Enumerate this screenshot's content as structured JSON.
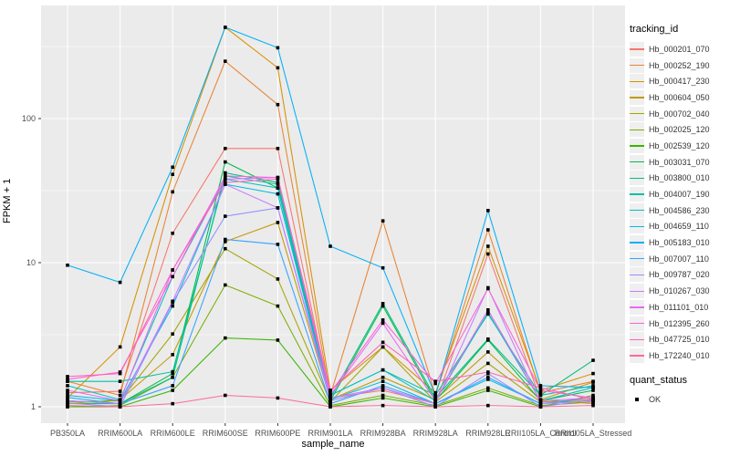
{
  "chart_data": {
    "type": "line",
    "title": "",
    "xlabel": "sample_name",
    "ylabel": "FPKM + 1",
    "y_scale": "log10",
    "ylim": [
      0.85,
      600
    ],
    "y_ticks": [
      1,
      10,
      100
    ],
    "y_tick_labels": [
      "1",
      "10",
      "100"
    ],
    "y_minor_ticks": [
      3.162,
      31.62,
      316.2
    ],
    "grid": true,
    "legend_position": "right",
    "panel_background": "#EBEBEB",
    "grid_color": "#FFFFFF",
    "point_color": "#000000",
    "tick_label_color": "#4D4D4D",
    "categories": [
      "PB350LA",
      "RRIM600LA",
      "RRIM600LE",
      "RRIM600SE",
      "RRIM600PE",
      "RRIM901LA",
      "RRIM928BA",
      "RRIM928LA",
      "RRIM928LE",
      "RRII105LA_Control",
      "RRII105LA_Stressed"
    ],
    "series": [
      {
        "name": "Hb_000201_070",
        "color": "#F8766D",
        "values": [
          1.25,
          1.28,
          16,
          62,
          62,
          1.15,
          1.3,
          1.05,
          11.5,
          1.12,
          1.05
        ]
      },
      {
        "name": "Hb_000252_190",
        "color": "#EA8331",
        "values": [
          1.5,
          1.2,
          31,
          250,
          125,
          1.2,
          19.5,
          1.2,
          16.9,
          1.25,
          1.5
        ]
      },
      {
        "name": "Hb_000417_230",
        "color": "#D89000",
        "values": [
          1.15,
          2.6,
          41,
          430,
          225,
          1.3,
          2.6,
          1.25,
          13,
          1.3,
          1.7
        ]
      },
      {
        "name": "Hb_000604_050",
        "color": "#C09B00",
        "values": [
          1.05,
          1.12,
          2.3,
          14,
          19,
          1.12,
          1.6,
          1.12,
          2.4,
          1.12,
          1.48
        ]
      },
      {
        "name": "Hb_000702_040",
        "color": "#A3A500",
        "values": [
          1.08,
          1.1,
          3.2,
          12.5,
          7.7,
          1.08,
          2.6,
          1.08,
          2.0,
          1.08,
          1.12
        ]
      },
      {
        "name": "Hb_002025_120",
        "color": "#7CAE00",
        "values": [
          1.0,
          1.02,
          1.6,
          7.0,
          5.0,
          1.02,
          1.2,
          1.02,
          1.35,
          1.02,
          1.08
        ]
      },
      {
        "name": "Hb_002539_120",
        "color": "#39B600",
        "values": [
          1.0,
          1.0,
          1.3,
          3.0,
          2.9,
          1.0,
          1.15,
          1.0,
          1.3,
          1.0,
          1.2
        ]
      },
      {
        "name": "Hb_003031_070",
        "color": "#00BB4E",
        "values": [
          1.05,
          1.05,
          1.7,
          50,
          33,
          1.1,
          5.0,
          1.1,
          2.9,
          1.1,
          1.3
        ]
      },
      {
        "name": "Hb_003800_010",
        "color": "#00BF7D",
        "values": [
          1.1,
          1.05,
          1.6,
          42,
          36,
          1.15,
          5.2,
          1.15,
          2.95,
          1.2,
          2.1
        ]
      },
      {
        "name": "Hb_004007_190",
        "color": "#00C1A3",
        "values": [
          1.5,
          1.5,
          1.75,
          40,
          35,
          1.2,
          1.8,
          1.2,
          4.4,
          1.2,
          1.4
        ]
      },
      {
        "name": "Hb_004586_230",
        "color": "#00BFC4",
        "values": [
          1.4,
          1.12,
          8.0,
          38,
          33,
          1.2,
          1.8,
          1.1,
          4.5,
          1.1,
          1.36
        ]
      },
      {
        "name": "Hb_004659_110",
        "color": "#00BAE0",
        "values": [
          1.2,
          1.1,
          5.0,
          35,
          30,
          1.12,
          1.5,
          1.05,
          1.55,
          1.05,
          1.1
        ]
      },
      {
        "name": "Hb_005183_010",
        "color": "#00B0F6",
        "values": [
          9.6,
          7.3,
          46,
          430,
          310,
          13,
          9.2,
          1.2,
          23,
          1.4,
          1.36
        ]
      },
      {
        "name": "Hb_007007_110",
        "color": "#35A2FF",
        "values": [
          1.16,
          1.05,
          1.4,
          14.5,
          13.4,
          1.05,
          1.4,
          1.05,
          1.6,
          1.05,
          1.16
        ]
      },
      {
        "name": "Hb_009787_020",
        "color": "#9590FF",
        "values": [
          1.06,
          1.0,
          5.3,
          21,
          24,
          1.1,
          1.35,
          1.0,
          1.7,
          1.0,
          1.12
        ]
      },
      {
        "name": "Hb_010267_030",
        "color": "#C77CFF",
        "values": [
          1.1,
          1.05,
          5.4,
          35,
          24,
          1.15,
          1.35,
          1.05,
          6.7,
          1.05,
          1.1
        ]
      },
      {
        "name": "Hb_011101_010",
        "color": "#E76BF3",
        "values": [
          1.3,
          1.1,
          8.9,
          38,
          39,
          1.2,
          3.8,
          1.1,
          4.7,
          1.1,
          1.15
        ]
      },
      {
        "name": "Hb_012395_260",
        "color": "#FA62DB",
        "values": [
          1.55,
          1.74,
          8.0,
          40,
          39,
          1.25,
          4.0,
          1.45,
          6.6,
          1.3,
          1.15
        ]
      },
      {
        "name": "Hb_047725_010",
        "color": "#FF62BC",
        "values": [
          1.62,
          1.7,
          8.9,
          36,
          38,
          1.3,
          2.8,
          1.5,
          1.74,
          1.35,
          1.12
        ]
      },
      {
        "name": "Hb_172240_010",
        "color": "#FF6A98",
        "values": [
          1.02,
          1.0,
          1.05,
          1.2,
          1.15,
          1.0,
          1.02,
          1.0,
          1.02,
          1.0,
          1.02
        ]
      }
    ]
  },
  "legend": {
    "tracking_title": "tracking_id",
    "quant_title": "quant_status",
    "quant_value": "OK"
  }
}
